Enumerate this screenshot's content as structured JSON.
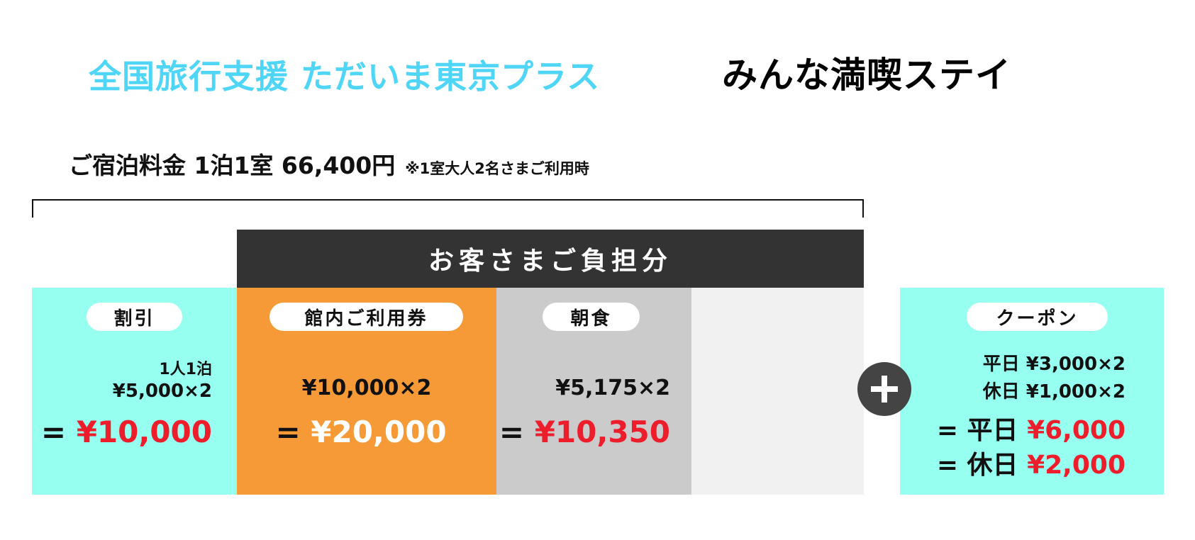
{
  "title": {
    "campaign": "全国旅行支援 ただいま東京プラス",
    "plan": "みんな満喫ステイ"
  },
  "price_line": {
    "label": "ご宿泊料金 1泊1室 66,400円",
    "note": "※1室大人2名さまご利用時"
  },
  "customer_share_label": "お客さまご負担分",
  "columns": [
    {
      "pill": "割引",
      "line1": "1人1泊",
      "line2": "¥5,000×2",
      "eq": "=",
      "total": "¥10,000"
    },
    {
      "pill": "館内ご利用券",
      "line2": "¥10,000×2",
      "eq": "=",
      "total": "¥20,000"
    },
    {
      "pill": "朝食",
      "line2": "¥5,175×2",
      "eq": "=",
      "total": "¥10,350"
    }
  ],
  "coupon": {
    "pill": "クーポン",
    "weekday_line": "平日 ¥3,000×2",
    "holiday_line": "休日 ¥1,000×2",
    "weekday_total_label": "= 平日",
    "weekday_total": "¥6,000",
    "holiday_total_label": "= 休日",
    "holiday_total": "¥2,000"
  },
  "icons": {
    "plus": "plus-circle-icon"
  },
  "colors": {
    "title_blue": "#4fd6f7",
    "cyan": "#96fff0",
    "orange": "#f59a36",
    "gray": "#cbcbcb",
    "light_gray": "#f1f1f1",
    "dark": "#333333",
    "red": "#ee1d2b"
  }
}
